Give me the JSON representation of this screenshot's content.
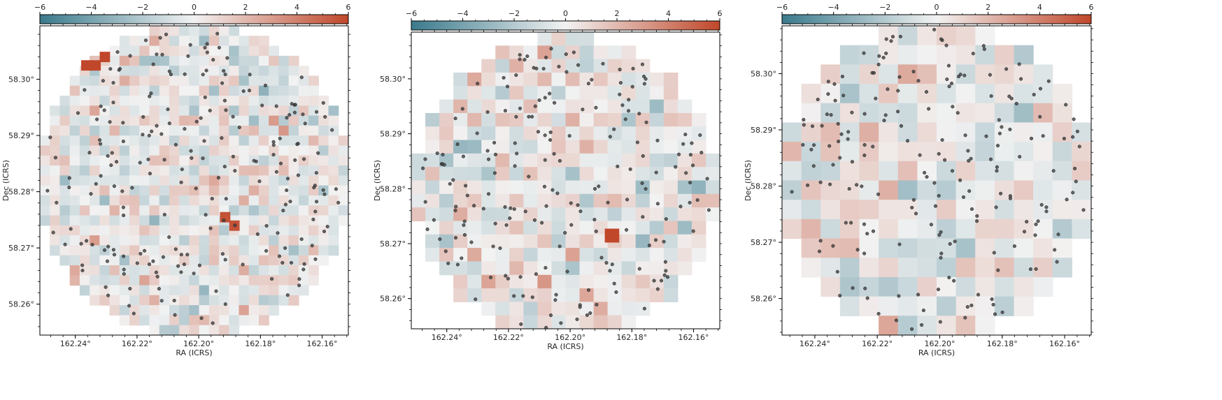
{
  "colors": {
    "negative": "#3a7a8c",
    "neutral": "#f2f2f2",
    "positive": "#c0472a",
    "marker": "#404040"
  },
  "chart_data": [
    {
      "type": "heatmap",
      "panel": "left",
      "xlabel": "RA (ICRS)",
      "ylabel": "Dec (ICRS)",
      "xlim": [
        162.2515,
        162.1515
      ],
      "ylim": [
        58.2545,
        58.3095
      ],
      "x_ticks": [
        "162.24°",
        "162.22°",
        "162.20°",
        "162.18°",
        "162.16°"
      ],
      "x_tick_values": [
        162.24,
        162.22,
        162.2,
        162.18,
        162.16
      ],
      "y_ticks": [
        "58.26°",
        "58.27°",
        "58.28°",
        "58.29°",
        "58.30°"
      ],
      "y_tick_values": [
        58.26,
        58.27,
        58.28,
        58.29,
        58.3
      ],
      "colorbar": {
        "ticks": [
          "−6",
          "−4",
          "−2",
          "0",
          "2",
          "4",
          "6"
        ],
        "tick_values": [
          -6,
          -4,
          -2,
          0,
          2,
          4,
          6
        ],
        "range": [
          -6,
          6
        ]
      },
      "grid_cols": 31,
      "grid_rows": 31,
      "pixel_radius_fraction": 1.0,
      "highlight_cells": [
        {
          "ra": 162.2365,
          "dec": 58.3025,
          "value": 6
        },
        {
          "ra": 162.2335,
          "dec": 58.3025,
          "value": 6
        },
        {
          "ra": 162.2305,
          "dec": 58.304,
          "value": 6
        },
        {
          "ra": 162.1915,
          "dec": 58.2755,
          "value": 5.6
        },
        {
          "ra": 162.1885,
          "dec": 58.274,
          "value": 5.6
        }
      ],
      "n_points": 220,
      "seed": 11
    },
    {
      "type": "heatmap",
      "panel": "middle",
      "xlabel": "RA (ICRS)",
      "ylabel": "Dec (ICRS)",
      "xlim": [
        162.2515,
        162.1515
      ],
      "ylim": [
        58.2545,
        58.3085
      ],
      "x_ticks": [
        "162.24°",
        "162.22°",
        "162.20°",
        "162.18°",
        "162.16°"
      ],
      "x_tick_values": [
        162.24,
        162.22,
        162.2,
        162.18,
        162.16
      ],
      "y_ticks": [
        "58.26°",
        "58.27°",
        "58.28°",
        "58.29°",
        "58.30°"
      ],
      "y_tick_values": [
        58.26,
        58.27,
        58.28,
        58.29,
        58.3
      ],
      "colorbar": {
        "ticks": [
          "−6",
          "−4",
          "−2",
          "0",
          "2",
          "4",
          "6"
        ],
        "tick_values": [
          -6,
          -4,
          -2,
          0,
          2,
          4,
          6
        ],
        "range": [
          -6,
          6
        ]
      },
      "grid_cols": 22,
      "grid_rows": 22,
      "pixel_radius_fraction": 1.0,
      "highlight_cells": [
        {
          "ra": 162.1865,
          "dec": 58.2715,
          "value": 6
        }
      ],
      "n_points": 200,
      "seed": 23
    },
    {
      "type": "heatmap",
      "panel": "right",
      "xlabel": "RA (ICRS)",
      "ylabel": "Dec (ICRS)",
      "xlim": [
        162.2505,
        162.1515
      ],
      "ylim": [
        58.2535,
        58.3085
      ],
      "x_ticks": [
        "162.24°",
        "162.22°",
        "162.20°",
        "162.18°",
        "162.16°"
      ],
      "x_tick_values": [
        162.24,
        162.22,
        162.2,
        162.18,
        162.16
      ],
      "y_ticks": [
        "58.26°",
        "58.27°",
        "58.28°",
        "58.29°",
        "58.30°"
      ],
      "y_tick_values": [
        58.26,
        58.27,
        58.28,
        58.29,
        58.3
      ],
      "colorbar": {
        "ticks": [
          "−6",
          "−4",
          "−2",
          "0",
          "2",
          "4",
          "6"
        ],
        "tick_values": [
          -6,
          -4,
          -2,
          0,
          2,
          4,
          6
        ],
        "range": [
          -6,
          6
        ]
      },
      "grid_cols": 16,
      "grid_rows": 16,
      "pixel_radius_fraction": 1.0,
      "highlight_cells": [],
      "n_points": 200,
      "seed": 37
    }
  ]
}
